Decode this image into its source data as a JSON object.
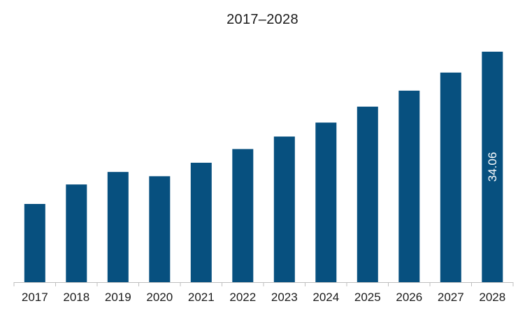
{
  "chart_data": {
    "type": "bar",
    "title": "2017–2028",
    "xlabel": "",
    "ylabel": "",
    "categories": [
      "2017",
      "2018",
      "2019",
      "2020",
      "2021",
      "2022",
      "2023",
      "2024",
      "2025",
      "2026",
      "2027",
      "2028"
    ],
    "values": [
      11.56,
      14.44,
      16.29,
      15.66,
      17.65,
      19.67,
      21.52,
      23.58,
      25.94,
      28.3,
      30.97,
      34.06
    ],
    "data_labels": [
      {
        "category": "2028",
        "text": "34.06"
      }
    ],
    "ylim": [
      0,
      34.06
    ],
    "grid": false,
    "legend": "none",
    "bar_color": "#07507f",
    "axis_color": "#bfbfbf"
  }
}
